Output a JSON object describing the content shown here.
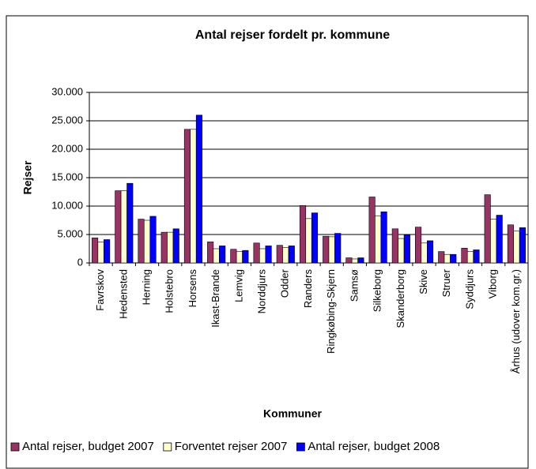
{
  "chart_data": {
    "type": "bar",
    "title": "Antal rejser fordelt pr. kommune",
    "x_label": "Kommuner",
    "y_label": "Rejser",
    "categories": [
      "Favrskov",
      "Hedensted",
      "Herning",
      "Holstebro",
      "Horsens",
      "Ikast-Brande",
      "Lemvig",
      "Norddjurs",
      "Odder",
      "Randers",
      "Ringkøbing-Skjern",
      "Samsø",
      "Silkeborg",
      "Skanderborg",
      "Skive",
      "Struer",
      "Syddjurs",
      "Viborg",
      "Århus (udover kom.gr.)"
    ],
    "series": [
      {
        "name": "Antal rejser, budget 2007",
        "color": "#993366",
        "values": [
          4400,
          12700,
          7700,
          5400,
          23500,
          3700,
          2400,
          3500,
          3100,
          10100,
          4700,
          900,
          11600,
          6000,
          6300,
          2000,
          2600,
          12000,
          6700
        ]
      },
      {
        "name": "Forventet rejser 2007",
        "color": "#ffffcc",
        "values": [
          3700,
          12700,
          7500,
          5400,
          23500,
          2500,
          2000,
          2500,
          2700,
          7800,
          4600,
          700,
          8300,
          4300,
          3500,
          1500,
          2000,
          7700,
          5600
        ]
      },
      {
        "name": "Antal rejser, budget 2008",
        "color": "#0000ff",
        "values": [
          4100,
          14000,
          8200,
          6000,
          26000,
          3000,
          2200,
          3000,
          3000,
          8800,
          5200,
          900,
          9000,
          4900,
          3900,
          1500,
          2300,
          8400,
          6200
        ]
      }
    ],
    "ylim": [
      0,
      30000
    ],
    "yticks": [
      0,
      {
        "value": 5000,
        "label": "5.000"
      },
      {
        "value": 10000,
        "label": "10.000"
      },
      {
        "value": 15000,
        "label": "15.000"
      },
      {
        "value": 20000,
        "label": "20.000"
      },
      {
        "value": 25000,
        "label": "25.000"
      },
      {
        "value": 30000,
        "label": "30.000"
      }
    ],
    "grid": true,
    "legend": "bottom"
  }
}
